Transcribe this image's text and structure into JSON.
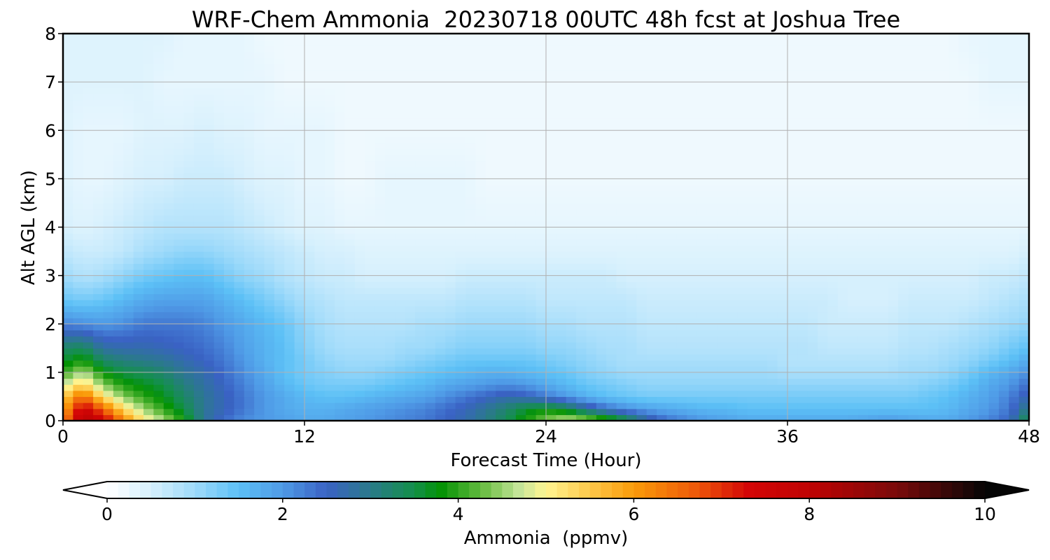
{
  "chart_data": {
    "type": "heatmap",
    "title": "WRF-Chem Ammonia  20230718 00UTC 48h fcst at Joshua Tree",
    "xlabel": "Forecast Time (Hour)",
    "ylabel": "Alt AGL (km)",
    "xlim": [
      0,
      48
    ],
    "ylim": [
      0,
      8
    ],
    "x_ticks": [
      "0",
      "12",
      "24",
      "36",
      "48"
    ],
    "y_ticks": [
      "0",
      "1",
      "2",
      "3",
      "4",
      "5",
      "6",
      "7",
      "8"
    ],
    "grid": true,
    "colorbar": {
      "label": "Ammonia  (ppmv)",
      "range": [
        0,
        10
      ],
      "ticks": [
        "0",
        "2",
        "4",
        "6",
        "8",
        "10"
      ],
      "extend": "both",
      "stops": [
        {
          "v": 0,
          "c": "#ffffff"
        },
        {
          "v": 0.5,
          "c": "#d6f0fd"
        },
        {
          "v": 1.0,
          "c": "#9edafa"
        },
        {
          "v": 1.5,
          "c": "#5cc0f6"
        },
        {
          "v": 2.0,
          "c": "#4f9ae6"
        },
        {
          "v": 2.5,
          "c": "#3a62c4"
        },
        {
          "v": 3.0,
          "c": "#2a7a8a"
        },
        {
          "v": 3.5,
          "c": "#13904a"
        },
        {
          "v": 3.8,
          "c": "#039203"
        },
        {
          "v": 4.3,
          "c": "#6dbf45"
        },
        {
          "v": 4.7,
          "c": "#c6e59a"
        },
        {
          "v": 5.0,
          "c": "#fff591"
        },
        {
          "v": 5.5,
          "c": "#fdc84a"
        },
        {
          "v": 6.0,
          "c": "#fa9b0a"
        },
        {
          "v": 6.7,
          "c": "#ee5a0a"
        },
        {
          "v": 7.3,
          "c": "#d40606"
        },
        {
          "v": 8.0,
          "c": "#bf0303"
        },
        {
          "v": 9.0,
          "c": "#7a0a0a"
        },
        {
          "v": 10.0,
          "c": "#050505"
        }
      ]
    },
    "hours": [
      0,
      1,
      2,
      3,
      4,
      5,
      6,
      7,
      8,
      9,
      10,
      11,
      12,
      13,
      14,
      15,
      16,
      17,
      18,
      19,
      20,
      21,
      22,
      23,
      24,
      25,
      26,
      27,
      28,
      29,
      30,
      31,
      32,
      33,
      34,
      35,
      36,
      37,
      38,
      39,
      40,
      41,
      42,
      43,
      44,
      45,
      46,
      47,
      48
    ],
    "altitudes_km": [
      0,
      0.25,
      0.5,
      0.75,
      1.0,
      1.25,
      1.5,
      2.0,
      2.5,
      3.0,
      3.5,
      4.0,
      5.0,
      6.0,
      7.0,
      8.0
    ],
    "values": [
      [
        6.2,
        8.2,
        7.6,
        6.3,
        5.2,
        4.6,
        3.9,
        2.9,
        2.4,
        2.1,
        2.0,
        1.9,
        1.8,
        1.8,
        1.9,
        2.0,
        2.1,
        2.2,
        2.3,
        2.5,
        2.7,
        3.0,
        3.4,
        3.9,
        4.4,
        4.8,
        4.6,
        4.2,
        3.6,
        2.9,
        2.4,
        2.2,
        2.0,
        1.9,
        1.8,
        1.8,
        1.8,
        1.8,
        1.8,
        1.8,
        1.9,
        2.0,
        1.9,
        1.8,
        1.8,
        2.0,
        2.2,
        2.5,
        3.6
      ],
      [
        5.8,
        7.6,
        6.6,
        5.3,
        4.5,
        4.0,
        3.5,
        2.9,
        2.6,
        2.3,
        2.0,
        1.8,
        1.7,
        1.7,
        1.8,
        1.9,
        2.0,
        2.1,
        2.2,
        2.4,
        2.6,
        2.9,
        3.2,
        3.6,
        3.8,
        3.5,
        2.9,
        2.4,
        2.1,
        1.9,
        1.8,
        1.7,
        1.6,
        1.6,
        1.5,
        1.5,
        1.5,
        1.5,
        1.5,
        1.5,
        1.5,
        1.5,
        1.5,
        1.5,
        1.6,
        1.8,
        2.0,
        2.3,
        3.1
      ],
      [
        5.4,
        6.6,
        5.2,
        4.4,
        4.0,
        3.7,
        3.3,
        2.9,
        2.6,
        2.3,
        2.0,
        1.8,
        1.6,
        1.5,
        1.5,
        1.6,
        1.7,
        1.8,
        1.9,
        2.1,
        2.3,
        2.5,
        2.7,
        2.6,
        2.3,
        2.0,
        1.7,
        1.5,
        1.4,
        1.3,
        1.3,
        1.3,
        1.3,
        1.3,
        1.3,
        1.3,
        1.3,
        1.3,
        1.3,
        1.3,
        1.3,
        1.3,
        1.3,
        1.4,
        1.5,
        1.7,
        1.9,
        2.2,
        2.7
      ],
      [
        4.7,
        5.4,
        4.4,
        3.9,
        3.7,
        3.5,
        3.1,
        2.8,
        2.5,
        2.2,
        1.9,
        1.6,
        1.4,
        1.3,
        1.3,
        1.3,
        1.4,
        1.5,
        1.6,
        1.8,
        1.9,
        2.0,
        2.1,
        2.0,
        1.8,
        1.6,
        1.4,
        1.3,
        1.2,
        1.1,
        1.1,
        1.1,
        1.1,
        1.1,
        1.1,
        1.1,
        1.1,
        1.1,
        1.1,
        1.1,
        1.1,
        1.1,
        1.1,
        1.2,
        1.3,
        1.5,
        1.8,
        2.0,
        2.4
      ],
      [
        4.0,
        4.6,
        3.8,
        3.5,
        3.4,
        3.2,
        2.9,
        2.7,
        2.4,
        2.1,
        1.8,
        1.5,
        1.3,
        1.2,
        1.1,
        1.1,
        1.2,
        1.3,
        1.4,
        1.5,
        1.6,
        1.7,
        1.7,
        1.6,
        1.5,
        1.4,
        1.2,
        1.1,
        1.0,
        1.0,
        1.0,
        1.0,
        1.0,
        1.0,
        1.0,
        1.0,
        0.9,
        0.9,
        0.9,
        0.9,
        0.9,
        0.9,
        1.0,
        1.0,
        1.1,
        1.3,
        1.6,
        1.8,
        2.1
      ],
      [
        3.6,
        3.9,
        3.3,
        3.1,
        3.0,
        2.9,
        2.7,
        2.5,
        2.3,
        2.0,
        1.7,
        1.5,
        1.3,
        1.1,
        1.0,
        1.0,
        1.0,
        1.1,
        1.2,
        1.3,
        1.4,
        1.4,
        1.4,
        1.4,
        1.3,
        1.2,
        1.1,
        1.0,
        0.9,
        0.9,
        0.9,
        0.9,
        0.9,
        0.9,
        0.9,
        0.9,
        0.8,
        0.8,
        0.8,
        0.8,
        0.8,
        0.8,
        0.9,
        0.9,
        1.0,
        1.1,
        1.3,
        1.5,
        1.8
      ],
      [
        3.3,
        3.4,
        2.8,
        2.7,
        2.7,
        2.6,
        2.5,
        2.4,
        2.2,
        1.9,
        1.7,
        1.5,
        1.2,
        1.0,
        0.9,
        0.9,
        0.9,
        1.0,
        1.0,
        1.1,
        1.2,
        1.2,
        1.2,
        1.2,
        1.1,
        1.1,
        1.0,
        0.9,
        0.9,
        0.8,
        0.8,
        0.8,
        0.8,
        0.8,
        0.8,
        0.8,
        0.8,
        0.8,
        0.7,
        0.7,
        0.7,
        0.7,
        0.8,
        0.8,
        0.9,
        1.0,
        1.1,
        1.3,
        1.5
      ],
      [
        2.2,
        2.1,
        2.0,
        2.1,
        2.3,
        2.3,
        2.3,
        2.2,
        2.0,
        1.8,
        1.6,
        1.4,
        1.1,
        0.9,
        0.8,
        0.8,
        0.8,
        0.8,
        0.9,
        0.9,
        1.0,
        1.0,
        1.0,
        1.0,
        0.9,
        0.9,
        0.8,
        0.8,
        0.8,
        0.7,
        0.7,
        0.7,
        0.7,
        0.7,
        0.7,
        0.7,
        0.7,
        0.7,
        0.6,
        0.6,
        0.6,
        0.6,
        0.7,
        0.7,
        0.7,
        0.8,
        0.9,
        1.0,
        1.1
      ],
      [
        1.4,
        1.3,
        1.4,
        1.6,
        1.8,
        1.9,
        1.9,
        1.9,
        1.7,
        1.5,
        1.3,
        1.1,
        0.9,
        0.8,
        0.7,
        0.7,
        0.7,
        0.7,
        0.7,
        0.7,
        0.8,
        0.8,
        0.8,
        0.8,
        0.7,
        0.7,
        0.7,
        0.7,
        0.7,
        0.6,
        0.6,
        0.6,
        0.6,
        0.6,
        0.6,
        0.6,
        0.6,
        0.6,
        0.6,
        0.5,
        0.5,
        0.5,
        0.6,
        0.6,
        0.6,
        0.6,
        0.7,
        0.8,
        0.9
      ],
      [
        1.0,
        0.8,
        0.9,
        1.1,
        1.3,
        1.4,
        1.5,
        1.5,
        1.3,
        1.1,
        1.0,
        0.8,
        0.7,
        0.6,
        0.6,
        0.5,
        0.5,
        0.5,
        0.5,
        0.5,
        0.6,
        0.6,
        0.6,
        0.6,
        0.6,
        0.6,
        0.6,
        0.6,
        0.5,
        0.5,
        0.5,
        0.5,
        0.5,
        0.5,
        0.5,
        0.5,
        0.5,
        0.5,
        0.5,
        0.5,
        0.5,
        0.5,
        0.5,
        0.5,
        0.5,
        0.5,
        0.6,
        0.6,
        0.7
      ],
      [
        0.7,
        0.6,
        0.6,
        0.7,
        0.9,
        1.0,
        1.1,
        1.1,
        1.0,
        0.9,
        0.8,
        0.7,
        0.6,
        0.5,
        0.5,
        0.4,
        0.4,
        0.4,
        0.4,
        0.4,
        0.4,
        0.4,
        0.4,
        0.4,
        0.4,
        0.4,
        0.4,
        0.4,
        0.4,
        0.4,
        0.4,
        0.4,
        0.4,
        0.4,
        0.4,
        0.4,
        0.4,
        0.4,
        0.4,
        0.4,
        0.4,
        0.4,
        0.4,
        0.4,
        0.4,
        0.4,
        0.4,
        0.4,
        0.5
      ],
      [
        0.5,
        0.4,
        0.5,
        0.6,
        0.7,
        0.8,
        0.8,
        0.8,
        0.8,
        0.7,
        0.6,
        0.5,
        0.4,
        0.4,
        0.3,
        0.3,
        0.3,
        0.3,
        0.3,
        0.3,
        0.3,
        0.3,
        0.3,
        0.3,
        0.3,
        0.3,
        0.3,
        0.3,
        0.3,
        0.3,
        0.3,
        0.3,
        0.3,
        0.3,
        0.3,
        0.3,
        0.3,
        0.3,
        0.3,
        0.3,
        0.3,
        0.3,
        0.3,
        0.3,
        0.3,
        0.3,
        0.3,
        0.3,
        0.3
      ],
      [
        0.4,
        0.3,
        0.3,
        0.4,
        0.5,
        0.5,
        0.6,
        0.6,
        0.6,
        0.5,
        0.4,
        0.4,
        0.3,
        0.3,
        0.2,
        0.2,
        0.3,
        0.3,
        0.3,
        0.3,
        0.3,
        0.2,
        0.2,
        0.2,
        0.2,
        0.2,
        0.2,
        0.2,
        0.2,
        0.2,
        0.2,
        0.2,
        0.2,
        0.2,
        0.2,
        0.2,
        0.2,
        0.2,
        0.2,
        0.2,
        0.2,
        0.2,
        0.2,
        0.2,
        0.2,
        0.2,
        0.2,
        0.2,
        0.2
      ],
      [
        0.4,
        0.3,
        0.3,
        0.3,
        0.4,
        0.4,
        0.4,
        0.5,
        0.4,
        0.4,
        0.3,
        0.3,
        0.3,
        0.3,
        0.2,
        0.2,
        0.2,
        0.2,
        0.2,
        0.2,
        0.2,
        0.2,
        0.2,
        0.2,
        0.2,
        0.2,
        0.2,
        0.2,
        0.2,
        0.2,
        0.2,
        0.2,
        0.2,
        0.2,
        0.2,
        0.2,
        0.2,
        0.2,
        0.2,
        0.2,
        0.2,
        0.2,
        0.2,
        0.2,
        0.2,
        0.2,
        0.2,
        0.2,
        0.2
      ],
      [
        0.4,
        0.4,
        0.4,
        0.4,
        0.4,
        0.3,
        0.3,
        0.3,
        0.3,
        0.3,
        0.3,
        0.2,
        0.2,
        0.2,
        0.2,
        0.2,
        0.2,
        0.2,
        0.2,
        0.2,
        0.2,
        0.2,
        0.2,
        0.2,
        0.2,
        0.2,
        0.2,
        0.2,
        0.2,
        0.2,
        0.2,
        0.2,
        0.2,
        0.2,
        0.2,
        0.2,
        0.2,
        0.2,
        0.2,
        0.2,
        0.2,
        0.2,
        0.2,
        0.2,
        0.2,
        0.2,
        0.3,
        0.3,
        0.3
      ],
      [
        0.4,
        0.4,
        0.4,
        0.4,
        0.4,
        0.4,
        0.3,
        0.3,
        0.3,
        0.3,
        0.2,
        0.2,
        0.2,
        0.2,
        0.2,
        0.2,
        0.2,
        0.2,
        0.2,
        0.2,
        0.2,
        0.2,
        0.2,
        0.2,
        0.2,
        0.2,
        0.2,
        0.2,
        0.2,
        0.2,
        0.2,
        0.2,
        0.2,
        0.2,
        0.2,
        0.2,
        0.2,
        0.2,
        0.2,
        0.2,
        0.2,
        0.2,
        0.2,
        0.2,
        0.2,
        0.3,
        0.3,
        0.3,
        0.3
      ]
    ]
  }
}
